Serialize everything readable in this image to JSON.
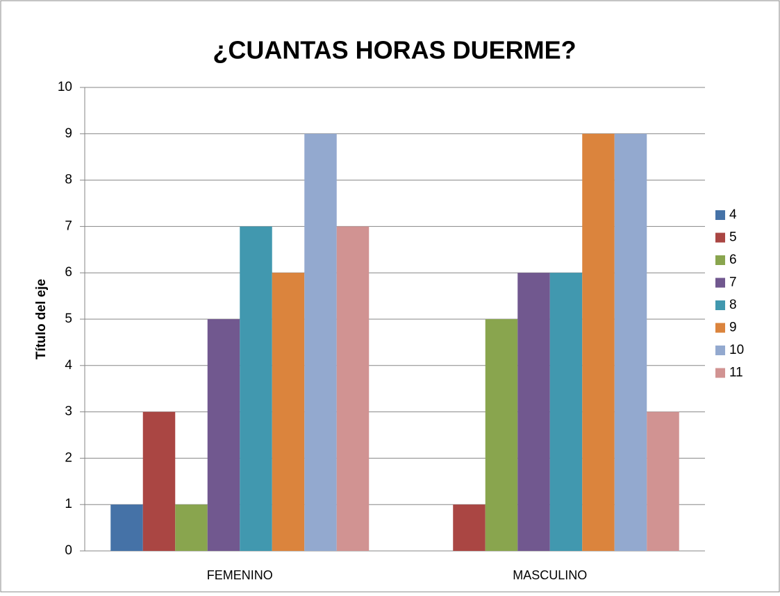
{
  "chart_data": {
    "type": "bar",
    "title": "¿CUANTAS HORAS DUERME?",
    "y_label": "Título del eje",
    "categories": [
      "FEMENINO",
      "MASCULINO"
    ],
    "series": [
      {
        "name": "4",
        "color": "#4572a7",
        "values": [
          1,
          0
        ]
      },
      {
        "name": "5",
        "color": "#aa4643",
        "values": [
          3,
          1
        ]
      },
      {
        "name": "6",
        "color": "#89a54e",
        "values": [
          1,
          5
        ]
      },
      {
        "name": "7",
        "color": "#71588f",
        "values": [
          5,
          6
        ]
      },
      {
        "name": "8",
        "color": "#4198af",
        "values": [
          7,
          6
        ]
      },
      {
        "name": "9",
        "color": "#db843d",
        "values": [
          6,
          9
        ]
      },
      {
        "name": "10",
        "color": "#93a9cf",
        "values": [
          9,
          9
        ]
      },
      {
        "name": "11",
        "color": "#d19392",
        "values": [
          7,
          3
        ]
      }
    ],
    "ylim": [
      0,
      10
    ],
    "yticks": [
      0,
      1,
      2,
      3,
      4,
      5,
      6,
      7,
      8,
      9,
      10
    ],
    "grid": true,
    "legend": "right"
  }
}
